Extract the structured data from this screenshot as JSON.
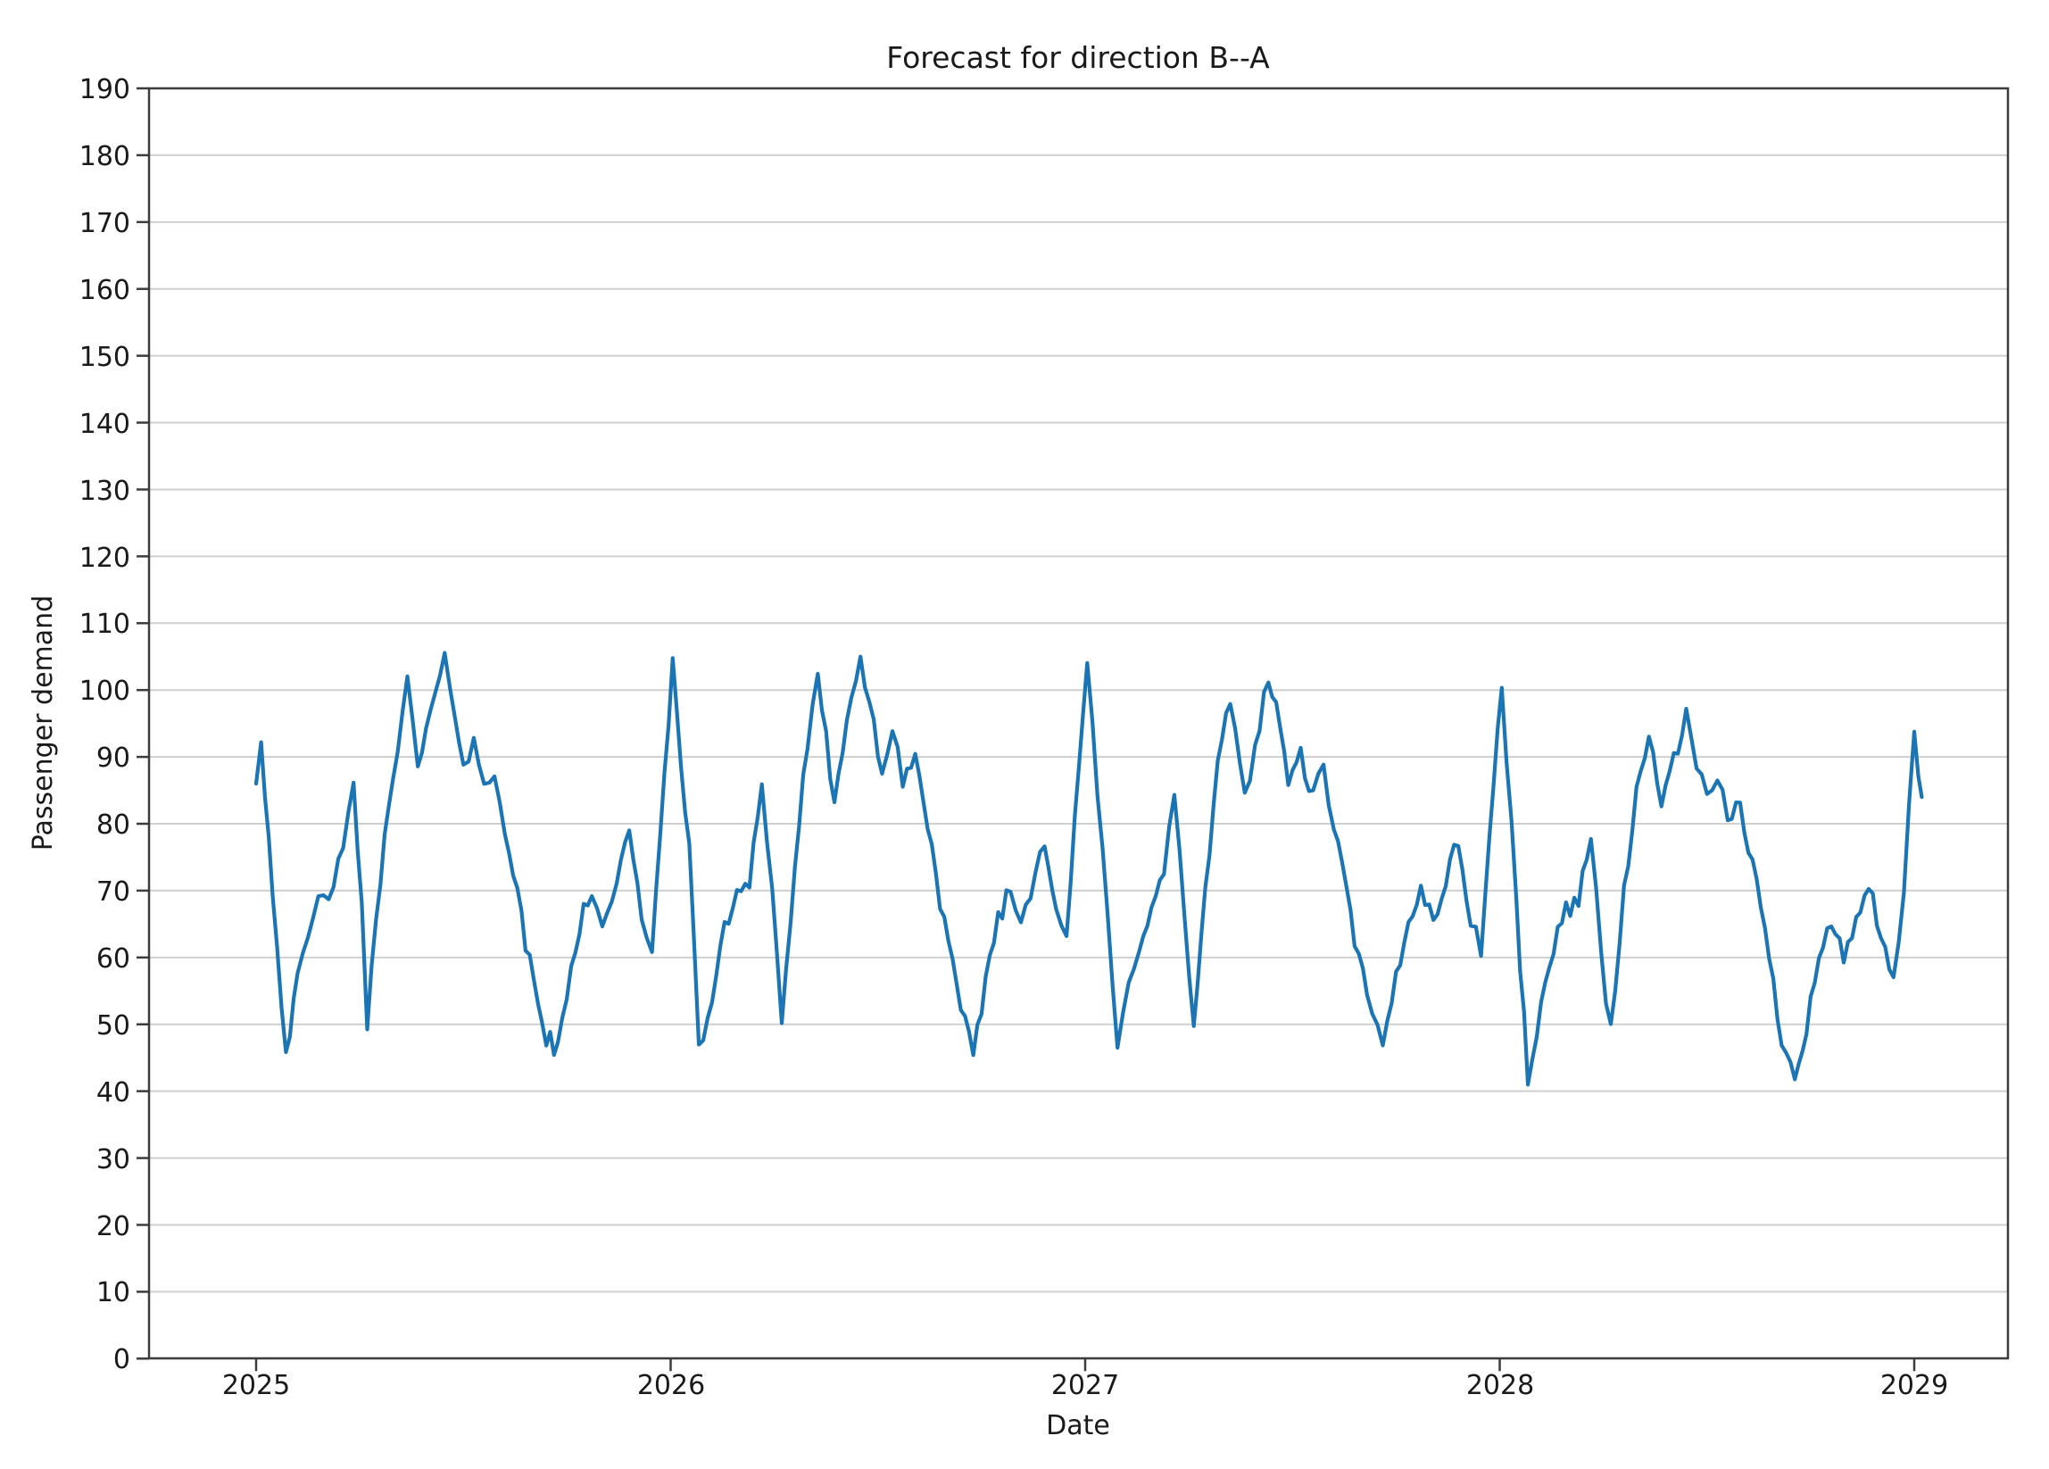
{
  "figure": {
    "background": "#ffffff"
  },
  "chart_data": {
    "type": "line",
    "title": "Forecast for direction B--A",
    "xlabel": "Date",
    "ylabel": "Passenger demand",
    "x_ticks": [
      "2025",
      "2026",
      "2027",
      "2028",
      "2029"
    ],
    "y_ticks": [
      "0",
      "10",
      "20",
      "30",
      "40",
      "50",
      "60",
      "70",
      "80",
      "90",
      "100",
      "110",
      "120",
      "130",
      "140",
      "150",
      "160",
      "170",
      "180",
      "190"
    ],
    "ylim": [
      0,
      190
    ],
    "xlim_years": [
      2024.742,
      2029.226
    ],
    "grid": "horizontal-only",
    "legend": "none",
    "colors": {
      "line": "#1b75b5",
      "gridline": "#cfcfcf",
      "spine": "#3c3c3c",
      "text": "#1a1a1a"
    },
    "noise": {
      "amplitude": 1.6,
      "step_years": 0.011,
      "seed": 42
    },
    "series": [
      {
        "name": "forecast",
        "points": [
          [
            2025.0,
            86
          ],
          [
            2025.012,
            93
          ],
          [
            2025.04,
            70
          ],
          [
            2025.072,
            46
          ],
          [
            2025.1,
            56
          ],
          [
            2025.125,
            63
          ],
          [
            2025.15,
            68
          ],
          [
            2025.175,
            70
          ],
          [
            2025.21,
            75
          ],
          [
            2025.235,
            86
          ],
          [
            2025.255,
            68
          ],
          [
            2025.268,
            50
          ],
          [
            2025.3,
            72
          ],
          [
            2025.33,
            88
          ],
          [
            2025.365,
            101
          ],
          [
            2025.39,
            88
          ],
          [
            2025.41,
            94
          ],
          [
            2025.455,
            104
          ],
          [
            2025.48,
            97
          ],
          [
            2025.5,
            89
          ],
          [
            2025.525,
            92
          ],
          [
            2025.55,
            85
          ],
          [
            2025.575,
            88
          ],
          [
            2025.6,
            80
          ],
          [
            2025.65,
            62
          ],
          [
            2025.7,
            48
          ],
          [
            2025.728,
            46
          ],
          [
            2025.76,
            58
          ],
          [
            2025.79,
            68
          ],
          [
            2025.81,
            70
          ],
          [
            2025.835,
            64
          ],
          [
            2025.87,
            72
          ],
          [
            2025.9,
            78
          ],
          [
            2025.93,
            66
          ],
          [
            2025.955,
            62
          ],
          [
            2025.985,
            86
          ],
          [
            2026.005,
            104
          ],
          [
            2026.045,
            76
          ],
          [
            2026.068,
            46
          ],
          [
            2026.1,
            54
          ],
          [
            2026.13,
            64
          ],
          [
            2026.16,
            70
          ],
          [
            2026.19,
            72
          ],
          [
            2026.22,
            86
          ],
          [
            2026.245,
            70
          ],
          [
            2026.268,
            50
          ],
          [
            2026.3,
            74
          ],
          [
            2026.33,
            92
          ],
          [
            2026.355,
            101
          ],
          [
            2026.395,
            84
          ],
          [
            2026.425,
            94
          ],
          [
            2026.458,
            104
          ],
          [
            2026.49,
            95
          ],
          [
            2026.51,
            88
          ],
          [
            2026.535,
            93
          ],
          [
            2026.56,
            87
          ],
          [
            2026.59,
            90
          ],
          [
            2026.62,
            80
          ],
          [
            2026.66,
            65
          ],
          [
            2026.7,
            52
          ],
          [
            2026.73,
            45
          ],
          [
            2026.76,
            57
          ],
          [
            2026.79,
            66
          ],
          [
            2026.82,
            70
          ],
          [
            2026.845,
            65
          ],
          [
            2026.88,
            73
          ],
          [
            2026.902,
            78
          ],
          [
            2026.93,
            68
          ],
          [
            2026.955,
            63
          ],
          [
            2026.985,
            88
          ],
          [
            2027.005,
            104.5
          ],
          [
            2027.042,
            75
          ],
          [
            2027.078,
            46
          ],
          [
            2027.105,
            56
          ],
          [
            2027.13,
            62
          ],
          [
            2027.16,
            68
          ],
          [
            2027.19,
            72
          ],
          [
            2027.215,
            85
          ],
          [
            2027.24,
            66
          ],
          [
            2027.262,
            49
          ],
          [
            2027.29,
            70
          ],
          [
            2027.32,
            88
          ],
          [
            2027.35,
            99
          ],
          [
            2027.385,
            84
          ],
          [
            2027.41,
            92
          ],
          [
            2027.442,
            102
          ],
          [
            2027.47,
            94
          ],
          [
            2027.49,
            87
          ],
          [
            2027.52,
            90
          ],
          [
            2027.55,
            84
          ],
          [
            2027.575,
            88
          ],
          [
            2027.6,
            80
          ],
          [
            2027.64,
            66
          ],
          [
            2027.68,
            54
          ],
          [
            2027.718,
            46
          ],
          [
            2027.75,
            57
          ],
          [
            2027.78,
            65
          ],
          [
            2027.81,
            71
          ],
          [
            2027.84,
            65
          ],
          [
            2027.87,
            72
          ],
          [
            2027.9,
            77
          ],
          [
            2027.93,
            66
          ],
          [
            2027.955,
            61
          ],
          [
            2027.985,
            86
          ],
          [
            2028.005,
            101
          ],
          [
            2028.04,
            68
          ],
          [
            2028.068,
            42
          ],
          [
            2028.1,
            52
          ],
          [
            2028.13,
            62
          ],
          [
            2028.16,
            67
          ],
          [
            2028.19,
            69
          ],
          [
            2028.22,
            78.5
          ],
          [
            2028.245,
            60
          ],
          [
            2028.268,
            49
          ],
          [
            2028.3,
            70
          ],
          [
            2028.33,
            84
          ],
          [
            2028.36,
            93
          ],
          [
            2028.39,
            84
          ],
          [
            2028.42,
            89
          ],
          [
            2028.45,
            96
          ],
          [
            2028.475,
            89
          ],
          [
            2028.5,
            83
          ],
          [
            2028.525,
            86
          ],
          [
            2028.55,
            81
          ],
          [
            2028.58,
            83
          ],
          [
            2028.61,
            74
          ],
          [
            2028.65,
            60
          ],
          [
            2028.68,
            48
          ],
          [
            2028.712,
            42.5
          ],
          [
            2028.74,
            50
          ],
          [
            2028.77,
            60
          ],
          [
            2028.8,
            65
          ],
          [
            2028.83,
            60
          ],
          [
            2028.86,
            66
          ],
          [
            2028.89,
            71
          ],
          [
            2028.92,
            62
          ],
          [
            2028.95,
            56
          ],
          [
            2028.975,
            70
          ],
          [
            2029.0,
            93.5
          ],
          [
            2029.01,
            88
          ],
          [
            2029.018,
            84
          ]
        ]
      }
    ]
  }
}
